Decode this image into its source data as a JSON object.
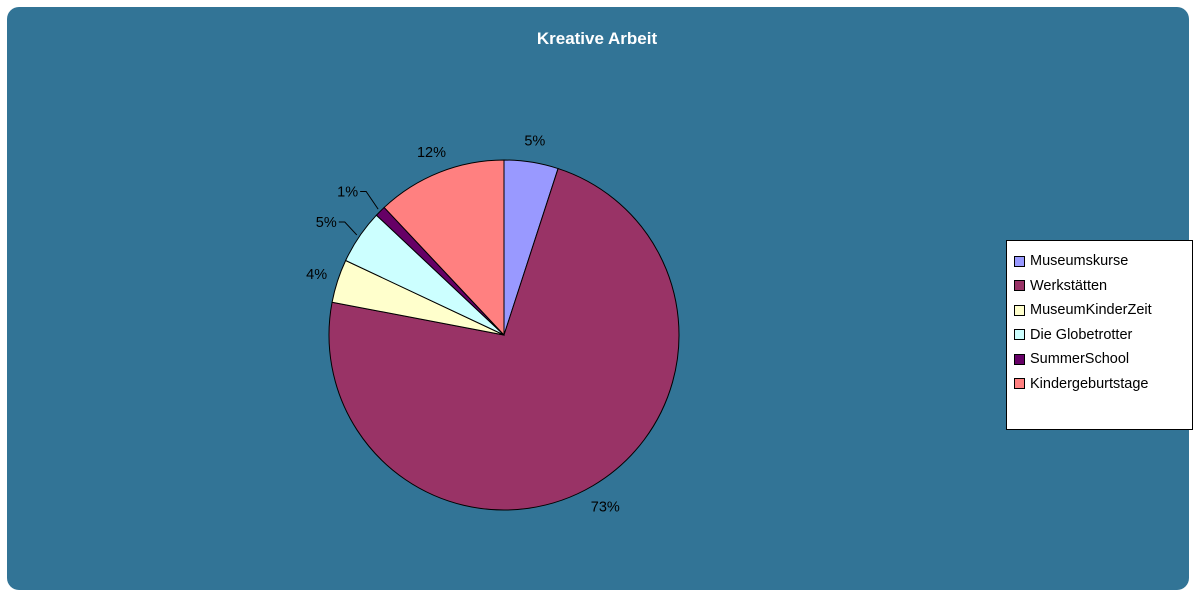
{
  "chart_data": {
    "type": "pie",
    "title": "Kreative Arbeit",
    "slices": [
      {
        "label": "Museumskurse",
        "value": 5,
        "display": "5%",
        "color": "#9999ff"
      },
      {
        "label": "Werkstätten",
        "value": 73,
        "display": "73%",
        "color": "#993366"
      },
      {
        "label": "MuseumKinderZeit",
        "value": 4,
        "display": "4%",
        "color": "#ffffcc"
      },
      {
        "label": "Die Globetrotter",
        "value": 5,
        "display": "5%",
        "color": "#ccffff"
      },
      {
        "label": "SummerSchool",
        "value": 1,
        "display": "1%",
        "color": "#660066"
      },
      {
        "label": "Kindergeburtstage",
        "value": 12,
        "display": "12%",
        "color": "#ff8080"
      }
    ],
    "legend_position": "right",
    "background_color": "#327496"
  }
}
